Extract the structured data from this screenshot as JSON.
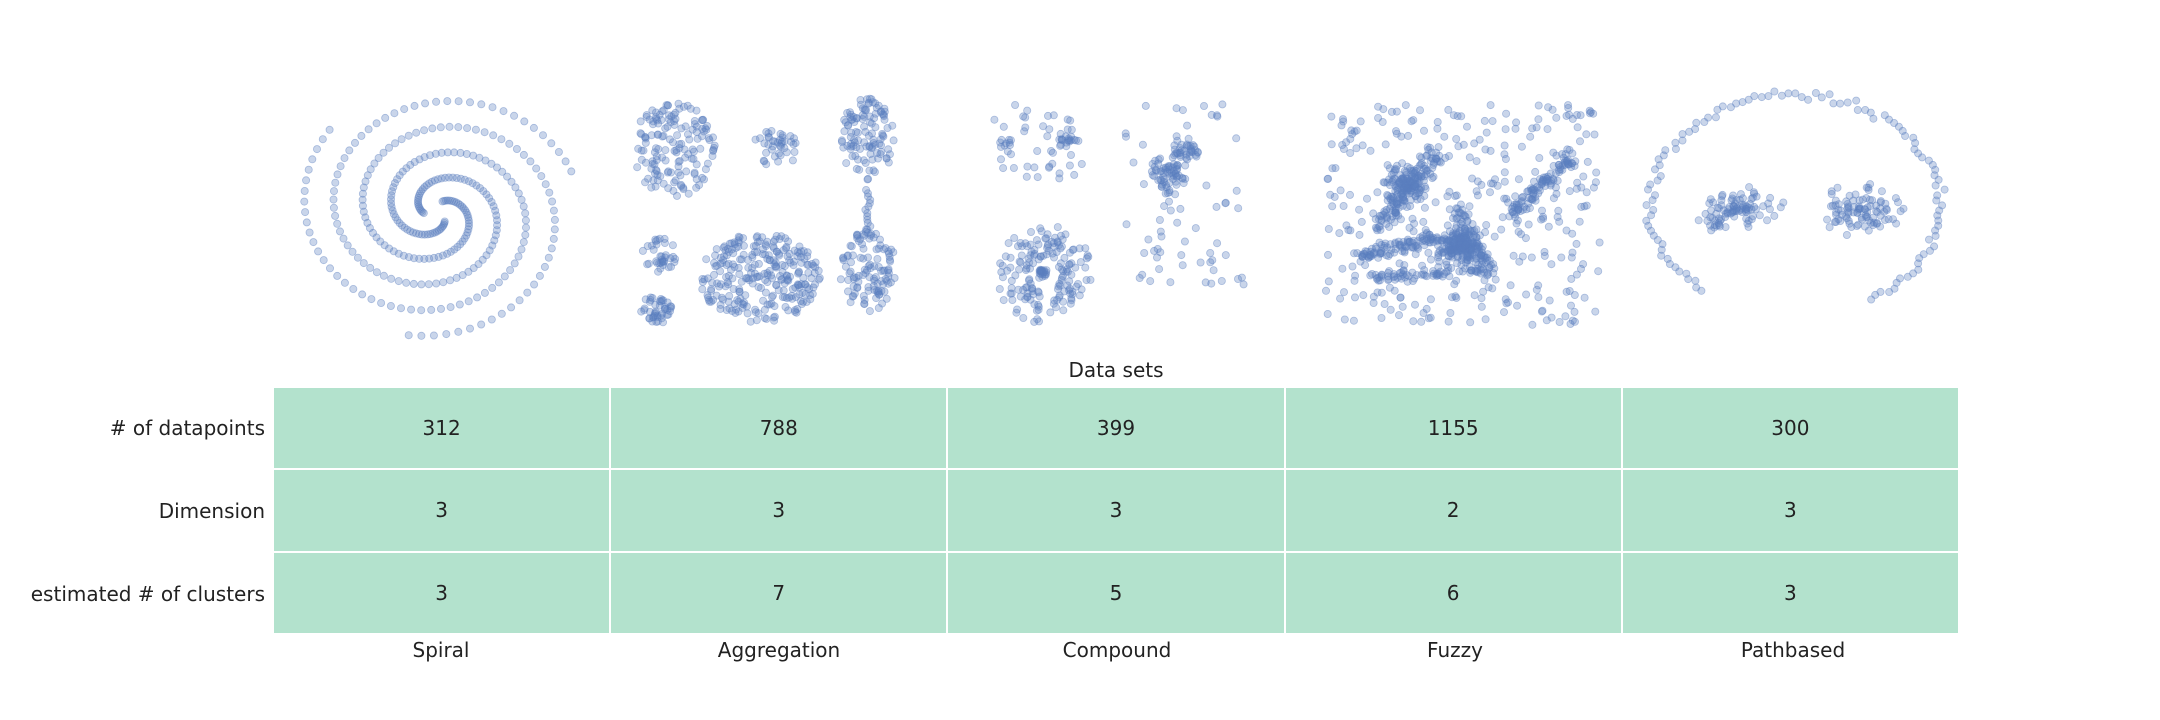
{
  "chart_data": {
    "type": "table",
    "title": "Data sets",
    "columns": [
      "Spiral",
      "Aggregation",
      "Compound",
      "Fuzzy",
      "Pathbased"
    ],
    "rows": [
      {
        "label": "# of datapoints",
        "values": [
          "312",
          "788",
          "399",
          "1155",
          "300"
        ]
      },
      {
        "label": "Dimension",
        "values": [
          "3",
          "3",
          "3",
          "2",
          "3"
        ]
      },
      {
        "label": "estimated # of clusters",
        "values": [
          "3",
          "7",
          "5",
          "6",
          "3"
        ]
      }
    ],
    "thumbnails": [
      {
        "name": "Spiral",
        "type": "scatter"
      },
      {
        "name": "Aggregation",
        "type": "scatter"
      },
      {
        "name": "Compound",
        "type": "scatter"
      },
      {
        "name": "Fuzzy",
        "type": "scatter"
      },
      {
        "name": "Pathbased",
        "type": "scatter"
      }
    ],
    "colors": {
      "point_fill": "#5a7fbf",
      "cell_fill": "#b3e2cd",
      "grid_line": "#ffffff"
    }
  }
}
